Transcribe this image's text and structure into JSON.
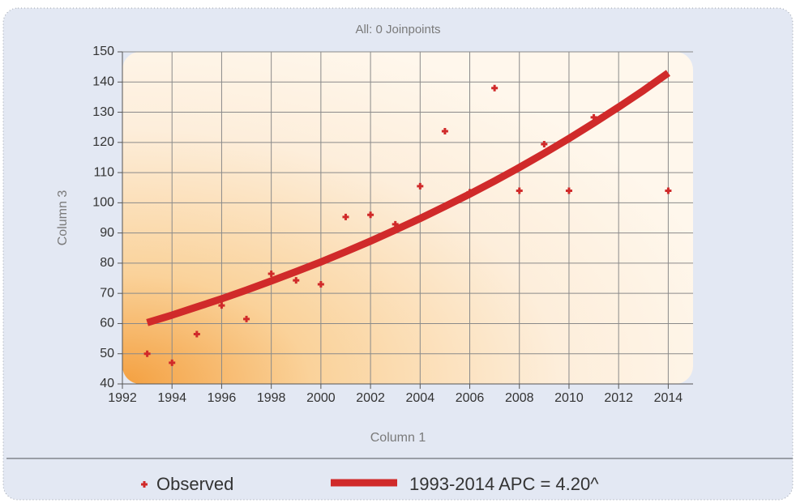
{
  "chart_data": {
    "type": "scatter",
    "title": "All: 0 Joinpoints",
    "x_label": "Column 1",
    "y_label": "Column 3",
    "xlim": [
      1992,
      2015
    ],
    "xticks": [
      1992,
      1994,
      1996,
      1998,
      2000,
      2002,
      2004,
      2006,
      2008,
      2010,
      2012,
      2014
    ],
    "ylim": [
      40,
      150
    ],
    "yticks": [
      40,
      50,
      60,
      70,
      80,
      90,
      100,
      110,
      120,
      130,
      140,
      150
    ],
    "grid": true,
    "series": [
      {
        "name": "Observed",
        "mode": "markers",
        "color": "#d02a2a",
        "x": [
          1993,
          1994,
          1995,
          1996,
          1997,
          1998,
          1999,
          2000,
          2001,
          2002,
          2003,
          2004,
          2005,
          2006,
          2007,
          2008,
          2009,
          2010,
          2011,
          2014
        ],
        "values": [
          50,
          47,
          56.5,
          66,
          61.5,
          76.5,
          74.3,
          73,
          95.3,
          96,
          92.9,
          105.5,
          123.7,
          103.5,
          138,
          104,
          119.4,
          104,
          128.3,
          104
        ]
      },
      {
        "name": "1993-2014 APC = 4.20^",
        "mode": "line",
        "color": "#d02a2a",
        "x": [
          1993,
          1994,
          1995,
          1996,
          1997,
          1998,
          1999,
          2000,
          2001,
          2002,
          2003,
          2004,
          2005,
          2006,
          2007,
          2008,
          2009,
          2010,
          2011,
          2012,
          2013,
          2014
        ],
        "values": [
          60.3,
          62.8,
          65.5,
          68.2,
          71.1,
          74.1,
          77.2,
          80.4,
          83.8,
          87.3,
          91.0,
          94.8,
          98.8,
          102.9,
          107.2,
          111.7,
          116.4,
          121.3,
          126.4,
          131.7,
          137.2,
          143.0
        ]
      }
    ]
  }
}
